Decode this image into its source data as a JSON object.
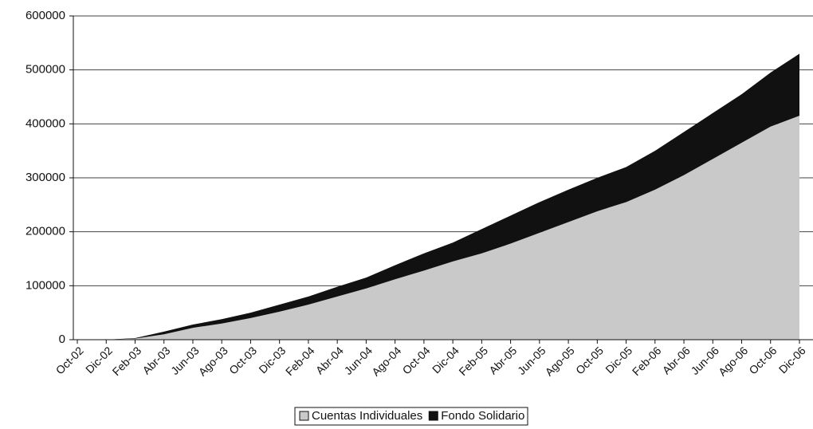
{
  "chart_data": {
    "type": "stacked-area",
    "categories": [
      "Oct-02",
      "Dic-02",
      "Feb-03",
      "Abr-03",
      "Jun-03",
      "Ago-03",
      "Oct-03",
      "Dic-03",
      "Feb-04",
      "Abr-04",
      "Jun-04",
      "Ago-04",
      "Oct-04",
      "Dic-04",
      "Feb-05",
      "Abr-05",
      "Jun-05",
      "Ago-05",
      "Oct-05",
      "Dic-05",
      "Feb-06",
      "Abr-06",
      "Jun-06",
      "Ago-06",
      "Oct-06",
      "Dic-06"
    ],
    "series": [
      {
        "name": "Cuentas Individuales",
        "color": "#c9c9c9",
        "values": [
          0,
          0,
          2000,
          10000,
          22000,
          30000,
          40000,
          52000,
          65000,
          80000,
          95000,
          112000,
          128000,
          145000,
          160000,
          178000,
          198000,
          218000,
          238000,
          255000,
          278000,
          305000,
          335000,
          365000,
          395000,
          415000
        ]
      },
      {
        "name": "Fondo Solidario",
        "color": "#111111",
        "values": [
          0,
          0,
          1000,
          5000,
          6000,
          8000,
          10000,
          13000,
          15000,
          18000,
          20000,
          26000,
          32000,
          35000,
          45000,
          52000,
          57000,
          60000,
          62000,
          65000,
          72000,
          80000,
          85000,
          90000,
          100000,
          115000
        ]
      }
    ],
    "ylim": [
      0,
      600000
    ],
    "yticks": [
      0,
      100000,
      200000,
      300000,
      400000,
      500000,
      600000
    ],
    "grid": true,
    "legend": "bottom"
  }
}
